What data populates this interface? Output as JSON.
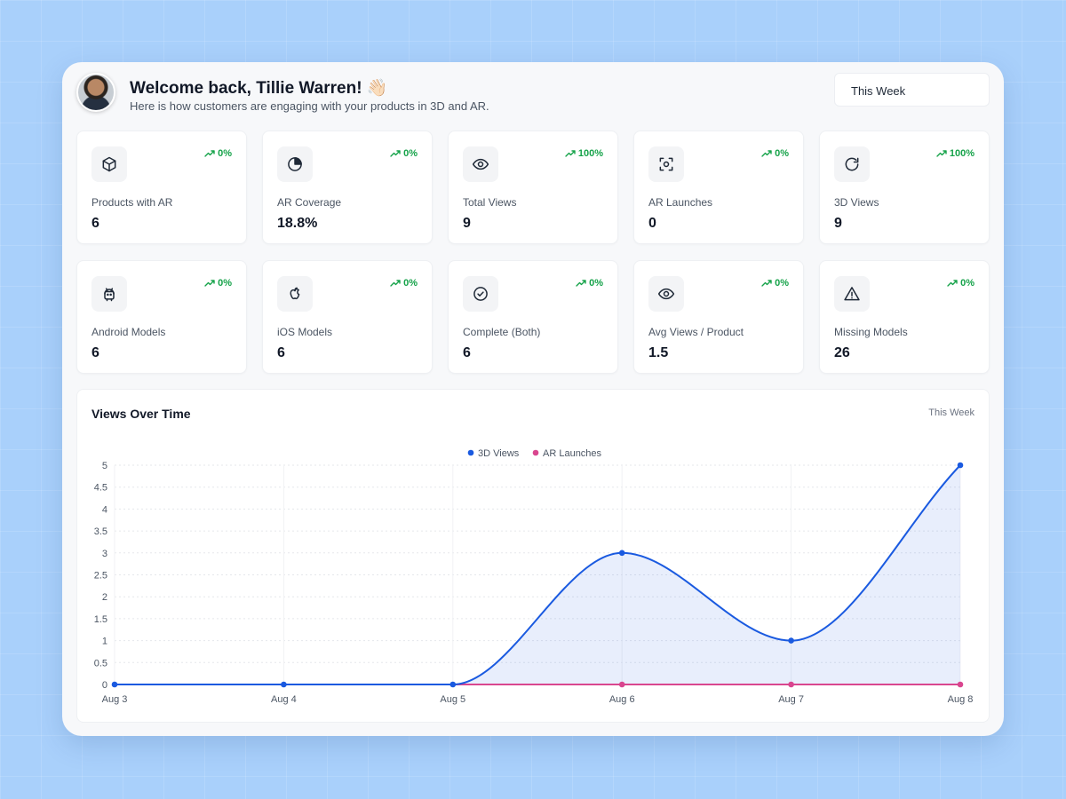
{
  "header": {
    "welcome": "Welcome back, Tillie Warren! 👋🏻",
    "subtitle": "Here is how customers are engaging with your products in 3D and AR.",
    "period": "This Week"
  },
  "stats": [
    {
      "icon": "cube-icon",
      "label": "Products with AR",
      "value": "6",
      "trend": "0%"
    },
    {
      "icon": "pie-chart-icon",
      "label": "AR Coverage",
      "value": "18.8%",
      "trend": "0%"
    },
    {
      "icon": "eye-icon",
      "label": "Total Views",
      "value": "9",
      "trend": "100%"
    },
    {
      "icon": "scan-icon",
      "label": "AR Launches",
      "value": "0",
      "trend": "0%"
    },
    {
      "icon": "rotate-icon",
      "label": "3D Views",
      "value": "9",
      "trend": "100%"
    },
    {
      "icon": "android-icon",
      "label": "Android Models",
      "value": "6",
      "trend": "0%"
    },
    {
      "icon": "apple-icon",
      "label": "iOS Models",
      "value": "6",
      "trend": "0%"
    },
    {
      "icon": "check-circle-icon",
      "label": "Complete (Both)",
      "value": "6",
      "trend": "0%"
    },
    {
      "icon": "eye-icon",
      "label": "Avg Views / Product",
      "value": "1.5",
      "trend": "0%"
    },
    {
      "icon": "warning-icon",
      "label": "Missing Models",
      "value": "26",
      "trend": "0%"
    }
  ],
  "colors": {
    "trend_up": "#16a34a",
    "series_3d": "#1a5ae0",
    "series_ar": "#d9468f"
  },
  "chart_title": "Views Over Time",
  "chart_period": "This Week",
  "chart_data": {
    "type": "line",
    "categories": [
      "Aug 3",
      "Aug 4",
      "Aug 5",
      "Aug 6",
      "Aug 7",
      "Aug 8"
    ],
    "series": [
      {
        "name": "3D Views",
        "values": [
          0,
          0,
          0,
          3,
          1,
          5
        ],
        "color": "#1a5ae0",
        "fill": true
      },
      {
        "name": "AR Launches",
        "values": [
          0,
          0,
          0,
          0,
          0,
          0
        ],
        "color": "#d9468f",
        "fill": false
      }
    ],
    "ylim": [
      0,
      5
    ],
    "yticks": [
      "0",
      "0.5",
      "1",
      "1.5",
      "2",
      "2.5",
      "3",
      "3.5",
      "4",
      "4.5",
      "5"
    ],
    "grid": true,
    "legend": "top-center"
  }
}
